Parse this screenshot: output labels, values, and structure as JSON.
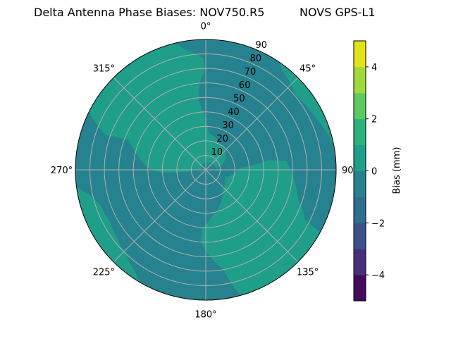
{
  "chart_data": {
    "type": "polar-contour",
    "title_left": "Delta Antenna Phase Biases: NOV750.R5",
    "title_right": "NOVS GPS-L1",
    "theta_direction": "clockwise",
    "theta_zero": "north",
    "theta_ticks": [
      {
        "value": 0,
        "label": "0°"
      },
      {
        "value": 45,
        "label": "45°"
      },
      {
        "value": 90,
        "label": "90°"
      },
      {
        "value": 135,
        "label": "135°"
      },
      {
        "value": 180,
        "label": "180°"
      },
      {
        "value": 225,
        "label": "225°"
      },
      {
        "value": 270,
        "label": "270°"
      },
      {
        "value": 315,
        "label": "315°"
      }
    ],
    "r_range": [
      0,
      90
    ],
    "r_ticks": [
      10,
      20,
      30,
      40,
      50,
      60,
      70,
      80,
      90
    ],
    "r_tick_labels": [
      "10",
      "20",
      "30",
      "40",
      "50",
      "60",
      "70",
      "80",
      "90"
    ],
    "grid": true,
    "background_level": [
      -1,
      0
    ],
    "regions": [
      {
        "level": [
          0,
          1
        ],
        "points": [
          [
            345.7,
            90
          ],
          [
            296.4,
            90
          ],
          [
            289.0,
            73.2
          ],
          [
            291.2,
            56.9
          ],
          [
            281.2,
            47.5
          ],
          [
            271.6,
            40.1
          ],
          [
            265.8,
            28.8
          ],
          [
            264,
            12.6
          ],
          [
            277,
            2.8
          ],
          [
            80.8,
            7.1
          ],
          [
            67.7,
            13.7
          ],
          [
            47.1,
            18.4
          ],
          [
            30.5,
            20.1
          ],
          [
            4.7,
            25.5
          ],
          [
            359.5,
            35.2
          ],
          [
            353.9,
            48.5
          ],
          [
            355.8,
            59.7
          ],
          [
            359.7,
            69.3
          ],
          [
            358.6,
            77.4
          ],
          [
            351.4,
            83.2
          ]
        ]
      },
      {
        "level": [
          0,
          1
        ],
        "points": [
          [
            34.4,
            90
          ],
          [
            83,
            90
          ],
          [
            74.3,
            88.1
          ],
          [
            63.9,
            83.6
          ],
          [
            50.4,
            80.6
          ],
          [
            37.1,
            86.8
          ]
        ]
      },
      {
        "level": [
          0,
          1
        ],
        "points": [
          [
            111.7,
            14.5
          ],
          [
            87.2,
            23.2
          ],
          [
            81.3,
            44.8
          ],
          [
            83.8,
            56.0
          ],
          [
            93.6,
            59.8
          ],
          [
            107.4,
            66.8
          ],
          [
            116.7,
            76.8
          ],
          [
            118.6,
            90
          ],
          [
            164.7,
            90
          ],
          [
            170.2,
            69.6
          ],
          [
            178,
            58.9
          ],
          [
            184.2,
            49.3
          ],
          [
            183.8,
            41.1
          ],
          [
            173.5,
            33.1
          ],
          [
            156.2,
            25.3
          ],
          [
            138.7,
            17.9
          ]
        ]
      },
      {
        "level": [
          0,
          1
        ],
        "points": [
          [
            262.4,
            90
          ],
          [
            210.6,
            90
          ],
          [
            213.8,
            86.5
          ],
          [
            222.9,
            80.3
          ],
          [
            232.1,
            77.4
          ],
          [
            241.3,
            75.3
          ],
          [
            251.1,
            76.6
          ],
          [
            258.3,
            82.3
          ]
        ]
      }
    ],
    "colorbar": {
      "label": "Bias (mm)",
      "range": [
        -5,
        5
      ],
      "levels": [
        -5,
        -4,
        -3,
        -2,
        -1,
        0,
        1,
        2,
        3,
        4,
        5
      ],
      "colors": [
        "#450a5c",
        "#472f7d",
        "#3b518b",
        "#2d6d8e",
        "#26828e",
        "#1f9e89",
        "#2db27d",
        "#5ec962",
        "#9fda3a",
        "#e2e418"
      ],
      "ticks": [
        -4,
        -2,
        0,
        2,
        4
      ],
      "tick_labels": [
        "−4",
        "−2",
        "0",
        "2",
        "4"
      ]
    }
  }
}
